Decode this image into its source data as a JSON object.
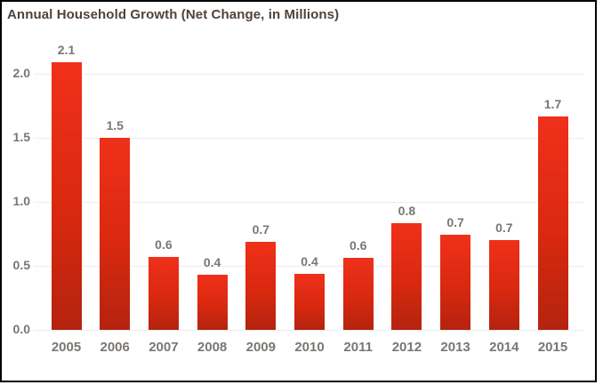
{
  "chart_data": {
    "type": "bar",
    "title": "Annual Household Growth (Net Change, in Millions)",
    "categories": [
      "2005",
      "2006",
      "2007",
      "2008",
      "2009",
      "2010",
      "2011",
      "2012",
      "2013",
      "2014",
      "2015"
    ],
    "values": [
      2.1,
      1.5,
      0.6,
      0.4,
      0.7,
      0.4,
      0.6,
      0.8,
      0.7,
      0.7,
      1.7
    ],
    "bar_labels": [
      "2.1",
      "1.5",
      "0.6",
      "0.4",
      "0.7",
      "0.4",
      "0.6",
      "0.8",
      "0.7",
      "0.7",
      "1.7"
    ],
    "values_precise": [
      2.09,
      1.5,
      0.57,
      0.43,
      0.69,
      0.44,
      0.56,
      0.83,
      0.74,
      0.7,
      1.67
    ],
    "yticks": [
      0.0,
      0.5,
      1.0,
      1.5,
      2.0
    ],
    "ytick_labels": [
      "0.0",
      "0.5",
      "1.0",
      "1.5",
      "2.0"
    ],
    "ylim": [
      0,
      2.25
    ],
    "xlabel": "",
    "ylabel": "",
    "grid": true,
    "legend_position": "none",
    "colors": {
      "bar_gradient_top": "#f0301a",
      "bar_gradient_bottom": "#b4230f",
      "label_text": "#7b7672",
      "title_text": "#50423a",
      "gridline": "#ededeb",
      "frame_border": "#000000",
      "background": "#ffffff"
    }
  }
}
